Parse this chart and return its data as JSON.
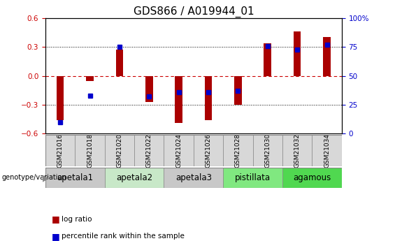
{
  "title": "GDS866 / A019944_01",
  "samples": [
    "GSM21016",
    "GSM21018",
    "GSM21020",
    "GSM21022",
    "GSM21024",
    "GSM21026",
    "GSM21028",
    "GSM21030",
    "GSM21032",
    "GSM21034"
  ],
  "log_ratio": [
    -0.46,
    -0.05,
    0.27,
    -0.27,
    -0.49,
    -0.46,
    -0.3,
    0.34,
    0.46,
    0.4
  ],
  "percentile_rank": [
    10,
    33,
    75,
    32,
    36,
    36,
    37,
    76,
    73,
    77
  ],
  "ylim": [
    -0.6,
    0.6
  ],
  "yticks_left": [
    -0.6,
    -0.3,
    0.0,
    0.3,
    0.6
  ],
  "yticks_right": [
    0,
    25,
    50,
    75,
    100
  ],
  "bar_color": "#aa0000",
  "pct_color": "#0000cc",
  "groups": [
    {
      "label": "apetala1",
      "samples": [
        "GSM21016",
        "GSM21018"
      ],
      "color": "#c8c8c8"
    },
    {
      "label": "apetala2",
      "samples": [
        "GSM21020",
        "GSM21022"
      ],
      "color": "#c8e8c8"
    },
    {
      "label": "apetala3",
      "samples": [
        "GSM21024",
        "GSM21026"
      ],
      "color": "#c8c8c8"
    },
    {
      "label": "pistillata",
      "samples": [
        "GSM21028",
        "GSM21030"
      ],
      "color": "#80e880"
    },
    {
      "label": "agamous",
      "samples": [
        "GSM21032",
        "GSM21034"
      ],
      "color": "#50d850"
    }
  ],
  "hline_zero_color": "#cc0000",
  "hline_dotted_color": "#000000",
  "bar_width": 0.25,
  "pct_marker_size": 5,
  "title_fontsize": 11,
  "tick_fontsize": 7.5,
  "left_axis_color": "#cc0000",
  "right_axis_color": "#0000cc",
  "sample_bg_color": "#d8d8d8",
  "genotype_label_fontsize": 8,
  "group_label_fontsize": 8.5
}
